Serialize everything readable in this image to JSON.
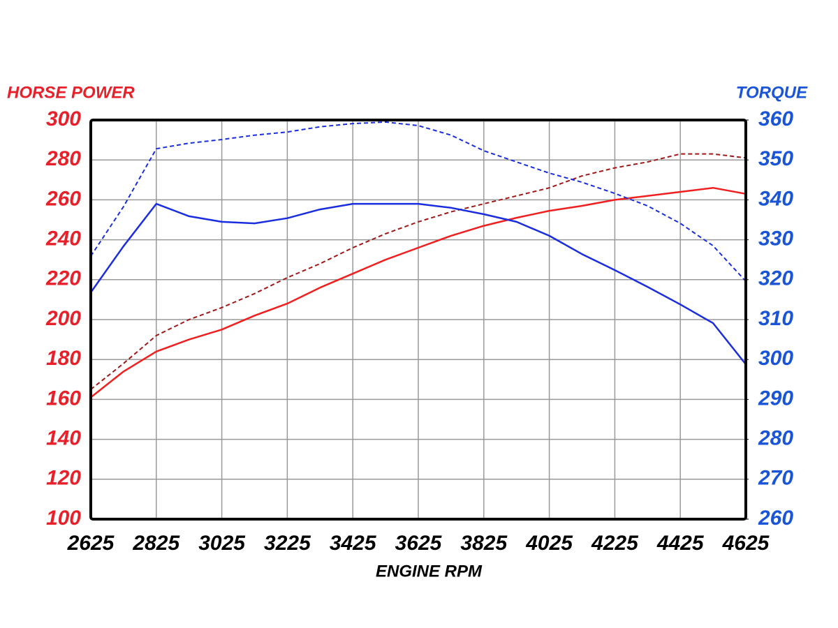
{
  "chart_data": {
    "type": "line",
    "y_label": "HORSE POWER",
    "y2_label": "TORQUE",
    "x_label": "ENGINE RPM",
    "x": [
      2625,
      2725,
      2825,
      2925,
      3025,
      3125,
      3225,
      3325,
      3425,
      3525,
      3625,
      3725,
      3825,
      3925,
      4025,
      4125,
      4225,
      4325,
      4425,
      4525,
      4625
    ],
    "xlim": [
      2625,
      4625
    ],
    "xticks": [
      2625,
      2825,
      3025,
      3225,
      3425,
      3625,
      3825,
      4025,
      4225,
      4425,
      4625
    ],
    "ylim": [
      100,
      300
    ],
    "yticks": [
      100,
      120,
      140,
      160,
      180,
      200,
      220,
      240,
      260,
      280,
      300
    ],
    "y2lim": [
      260,
      360
    ],
    "y2ticks": [
      260,
      270,
      280,
      290,
      300,
      310,
      320,
      330,
      340,
      350,
      360
    ],
    "y_color": "#e8202a",
    "y2_color": "#1a55d8",
    "grid": true,
    "series": [
      {
        "color": "#f02020",
        "dashed": false,
        "values": [
          161,
          174,
          184,
          190,
          195,
          202,
          208,
          216,
          223,
          230,
          236,
          242,
          247,
          251,
          254.5,
          257,
          260,
          262,
          264,
          266,
          263
        ]
      },
      {
        "color": "#a01818",
        "dashed": true,
        "values": [
          165,
          178,
          192,
          200,
          206,
          213,
          221,
          228,
          236,
          243,
          249,
          254,
          258,
          262,
          266,
          272,
          276,
          279,
          283,
          283,
          281
        ]
      },
      {
        "color": "#1a2ee0",
        "dashed": false,
        "axis": "y2",
        "values": [
          316.8,
          328.4,
          339,
          335.9,
          334.5,
          334.1,
          335.4,
          337.6,
          339,
          339,
          339,
          338,
          336.4,
          334.5,
          331,
          326.4,
          322.4,
          318.2,
          313.8,
          309.1,
          298.8
        ]
      },
      {
        "color": "#1a2ee0",
        "dashed": true,
        "axis": "y2",
        "values": [
          325.9,
          338.3,
          352.8,
          354.2,
          355.1,
          356.2,
          357,
          358.3,
          359.1,
          359.5,
          358.6,
          356.2,
          352.3,
          349.5,
          346.7,
          344.4,
          341.6,
          338.5,
          334.1,
          328.5,
          319.6
        ]
      }
    ]
  }
}
